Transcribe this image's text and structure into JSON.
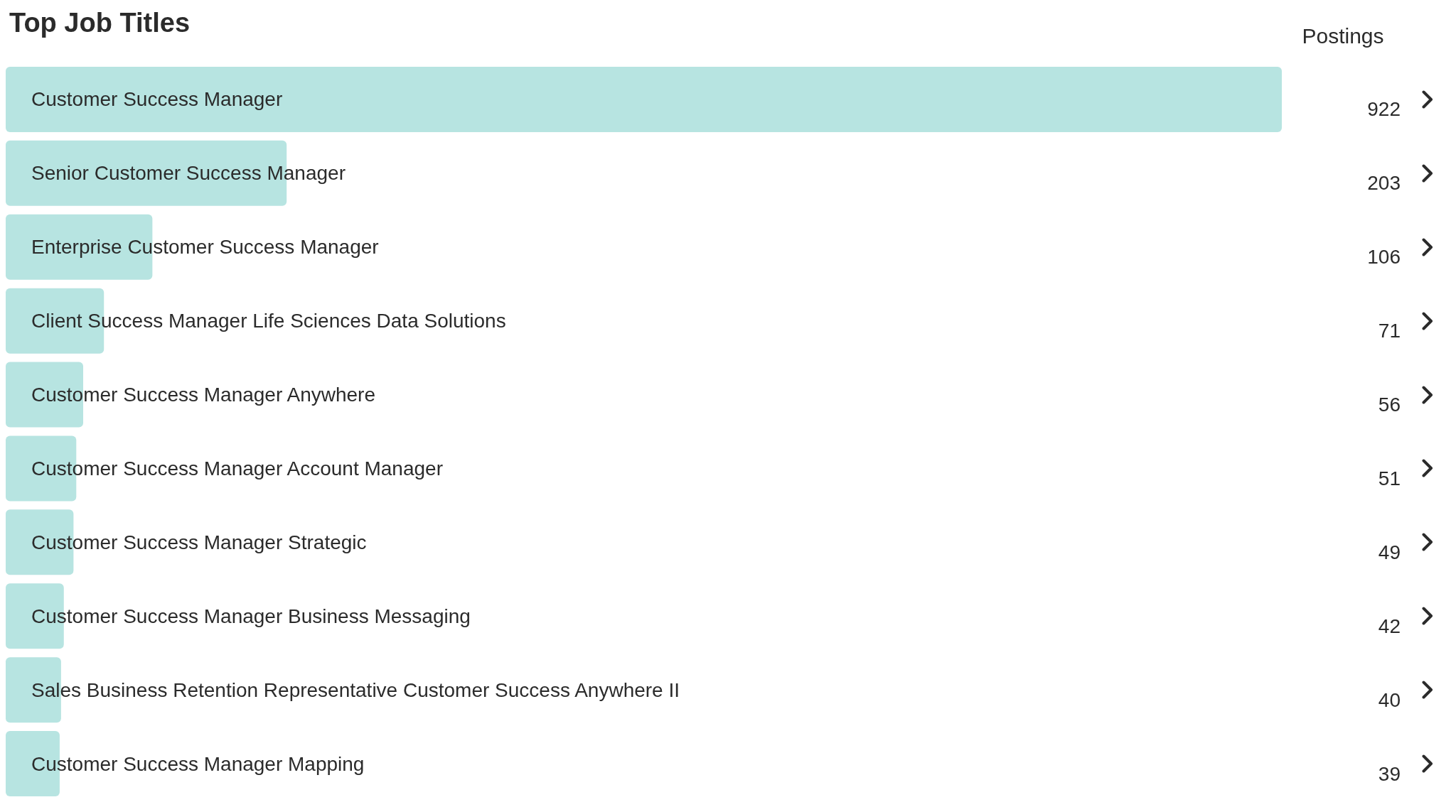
{
  "chart_data": {
    "type": "bar",
    "orientation": "horizontal",
    "title": "Top Job Titles",
    "xlabel": "Postings",
    "categories": [
      "Customer Success Manager",
      "Senior Customer Success Manager",
      "Enterprise Customer Success Manager",
      "Client Success Manager Life Sciences Data Solutions",
      "Customer Success Manager Anywhere",
      "Customer Success Manager Account Manager",
      "Customer Success Manager Strategic",
      "Customer Success Manager Business Messaging",
      "Sales Business Retention Representative Customer Success Anywhere II",
      "Customer Success Manager Mapping"
    ],
    "values": [
      922,
      203,
      106,
      71,
      56,
      51,
      49,
      42,
      40,
      39
    ],
    "color": "#b7e4e1",
    "data_labels": true
  }
}
